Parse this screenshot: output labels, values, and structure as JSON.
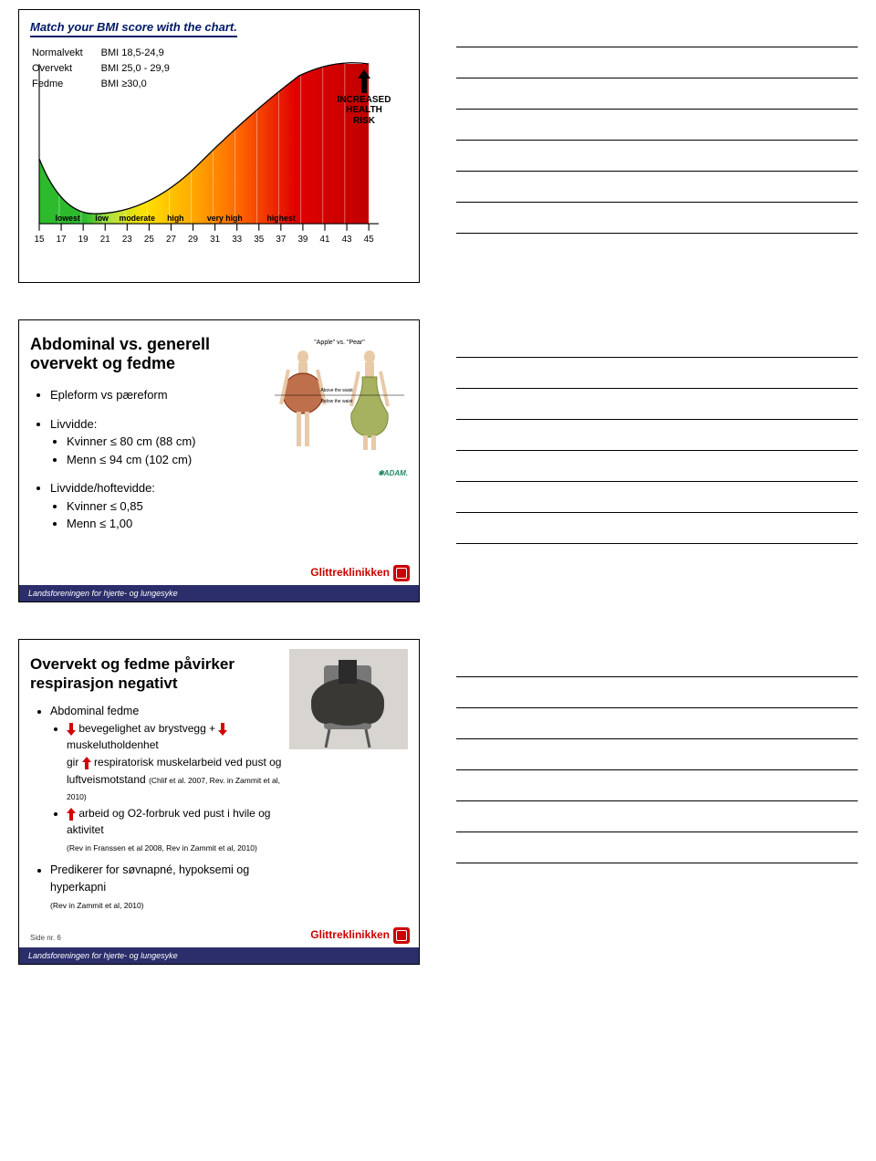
{
  "slide1": {
    "title": "Match your BMI score with the chart.",
    "categories": [
      {
        "name": "Normalvekt",
        "range": "BMI 18,5-24,9"
      },
      {
        "name": "Overvekt",
        "range": "BMI 25,0 - 29,9"
      },
      {
        "name": "Fedme",
        "range": "BMI ≥30,0"
      }
    ],
    "risk_label": "INCREASED HEALTH RISK",
    "chart": {
      "type": "area-gradient",
      "xticks": [
        "15",
        "17",
        "19",
        "21",
        "23",
        "25",
        "27",
        "29",
        "31",
        "33",
        "35",
        "37",
        "39",
        "41",
        "43",
        "45"
      ],
      "zones": [
        {
          "label": "lowest",
          "color": "#2dbb2d"
        },
        {
          "label": "low",
          "color": "#b6e23c"
        },
        {
          "label": "moderate",
          "color": "#ffe000"
        },
        {
          "label": "high",
          "color": "#ffb000"
        },
        {
          "label": "very high",
          "color": "#ff6a00"
        },
        {
          "label": "highest",
          "color": "#e00000"
        }
      ],
      "curve_points": [
        [
          0,
          95
        ],
        [
          22,
          140
        ],
        [
          55,
          148
        ],
        [
          90,
          140
        ],
        [
          140,
          110
        ],
        [
          190,
          70
        ],
        [
          250,
          20
        ],
        [
          330,
          0
        ]
      ],
      "axis_color": "#000",
      "label_fontsize": 8
    }
  },
  "slide2": {
    "title": "Abdominal vs. generell overvekt og fedme",
    "b1": "Epleform vs pæreform",
    "b2": "Livvidde:",
    "b2a": "Kvinner ≤ 80 cm (88 cm)",
    "b2b": "Menn ≤ 94 cm (102 cm)",
    "b3": "Livvidde/hoftevidde:",
    "b3a": "Kvinner ≤ 0,85",
    "b3b": "Menn ≤ 1,00",
    "fig": {
      "caption_top": "\"Apple\" vs. \"Pear\"",
      "above": "Above the waist",
      "below": "Below the waist",
      "apple_color": "#b55b32",
      "pear_color": "#9aa84a"
    },
    "adam_label": "✱ADAM.",
    "brand_name": "Glittreklinikken",
    "brand_sub": "Landsforeningen for hjerte- og lungesyke"
  },
  "slide3": {
    "title": "Overvekt og fedme påvirker respirasjon negativt",
    "b1": "Abdominal fedme",
    "b1a_pre": "bevegelighet av brystvegg +",
    "b1a_post": "muskelutholdenhet",
    "b1b_pre": "gir",
    "b1b_mid": "respiratorisk muskelarbeid ved pust og luftveismotstand",
    "b1b_ref": "(Chlif et al. 2007, Rev. in Zammit et al, 2010)",
    "b1c": "arbeid og O2-forbruk ved pust i hvile og aktivitet",
    "b1c_ref": "(Rev in Franssen et al 2008, Rev in Zammit et al, 2010)",
    "b2": "Predikerer for søvnapné, hypoksemi og hyperkapni",
    "b2_ref": "(Rev in Zammit et al, 2010)",
    "arrow_down_color": "#d40000",
    "arrow_up_color": "#d40000",
    "side_label": "Side nr. 6",
    "brand_name": "Glittreklinikken",
    "brand_sub": "Landsforeningen for hjerte- og lungesyke"
  },
  "notes": {
    "line_count": 7
  }
}
